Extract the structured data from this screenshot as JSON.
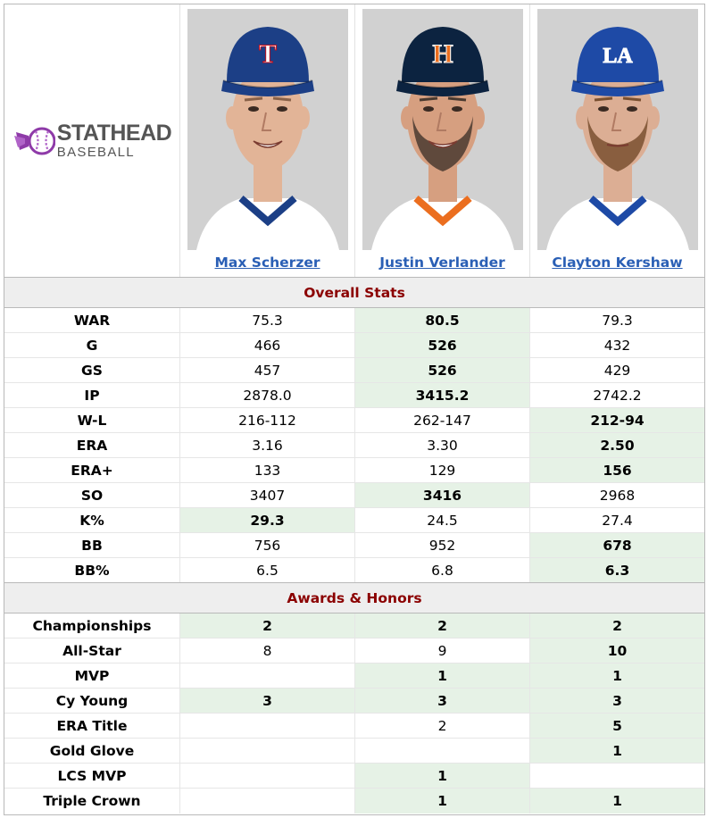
{
  "logo": {
    "main": "STATHEAD",
    "sub": "BASEBALL",
    "icon": "stathead-baseball-logo"
  },
  "players": [
    {
      "name": "Max Scherzer",
      "cap_color": "#1c3f86",
      "cap_logo": "T",
      "logo_color": "#ffffff",
      "logo_outline": "#c0111f",
      "jersey": "#ffffff",
      "trim": "#1c3f86",
      "bg": "#d1d1d1",
      "skin": "#e2b497",
      "hair": "#8a6248",
      "expression": "smile",
      "beard": false
    },
    {
      "name": "Justin Verlander",
      "cap_color": "#0c2340",
      "cap_logo": "H",
      "logo_color": "#eb6e1f",
      "logo_outline": "#ffffff",
      "jersey": "#ffffff",
      "trim": "#eb6e1f",
      "bg": "#d1d1d1",
      "skin": "#d69f80",
      "hair": "#4a3a30",
      "expression": "smile",
      "beard": true
    },
    {
      "name": "Clayton Kershaw",
      "cap_color": "#1e4aa6",
      "cap_logo": "LA",
      "logo_color": "#ffffff",
      "logo_outline": "#ffffff",
      "jersey": "#ffffff",
      "trim": "#1e4aa6",
      "bg": "#d1d1d1",
      "skin": "#dcae94",
      "hair": "#7a5030",
      "expression": "neutral",
      "beard": true
    }
  ],
  "sections": [
    {
      "title": "Overall Stats",
      "rows": [
        {
          "label": "WAR",
          "values": [
            "75.3",
            "80.5",
            "79.3"
          ],
          "best": [
            1
          ]
        },
        {
          "label": "G",
          "values": [
            "466",
            "526",
            "432"
          ],
          "best": [
            1
          ]
        },
        {
          "label": "GS",
          "values": [
            "457",
            "526",
            "429"
          ],
          "best": [
            1
          ]
        },
        {
          "label": "IP",
          "values": [
            "2878.0",
            "3415.2",
            "2742.2"
          ],
          "best": [
            1
          ]
        },
        {
          "label": "W-L",
          "values": [
            "216-112",
            "262-147",
            "212-94"
          ],
          "best": [
            2
          ]
        },
        {
          "label": "ERA",
          "values": [
            "3.16",
            "3.30",
            "2.50"
          ],
          "best": [
            2
          ]
        },
        {
          "label": "ERA+",
          "values": [
            "133",
            "129",
            "156"
          ],
          "best": [
            2
          ]
        },
        {
          "label": "SO",
          "values": [
            "3407",
            "3416",
            "2968"
          ],
          "best": [
            1
          ]
        },
        {
          "label": "K%",
          "values": [
            "29.3",
            "24.5",
            "27.4"
          ],
          "best": [
            0
          ]
        },
        {
          "label": "BB",
          "values": [
            "756",
            "952",
            "678"
          ],
          "best": [
            2
          ]
        },
        {
          "label": "BB%",
          "values": [
            "6.5",
            "6.8",
            "6.3"
          ],
          "best": [
            2
          ]
        }
      ]
    },
    {
      "title": "Awards & Honors",
      "rows": [
        {
          "label": "Championships",
          "values": [
            "2",
            "2",
            "2"
          ],
          "best": [
            0,
            1,
            2
          ]
        },
        {
          "label": "All-Star",
          "values": [
            "8",
            "9",
            "10"
          ],
          "best": [
            2
          ]
        },
        {
          "label": "MVP",
          "values": [
            "",
            "1",
            "1"
          ],
          "best": [
            1,
            2
          ]
        },
        {
          "label": "Cy Young",
          "values": [
            "3",
            "3",
            "3"
          ],
          "best": [
            0,
            1,
            2
          ]
        },
        {
          "label": "ERA Title",
          "values": [
            "",
            "2",
            "5"
          ],
          "best": [
            2
          ]
        },
        {
          "label": "Gold Glove",
          "values": [
            "",
            "",
            "1"
          ],
          "best": [
            2
          ]
        },
        {
          "label": "LCS MVP",
          "values": [
            "",
            "1",
            ""
          ],
          "best": [
            1
          ]
        },
        {
          "label": "Triple Crown",
          "values": [
            "",
            "1",
            "1"
          ],
          "best": [
            1,
            2
          ]
        }
      ]
    }
  ]
}
